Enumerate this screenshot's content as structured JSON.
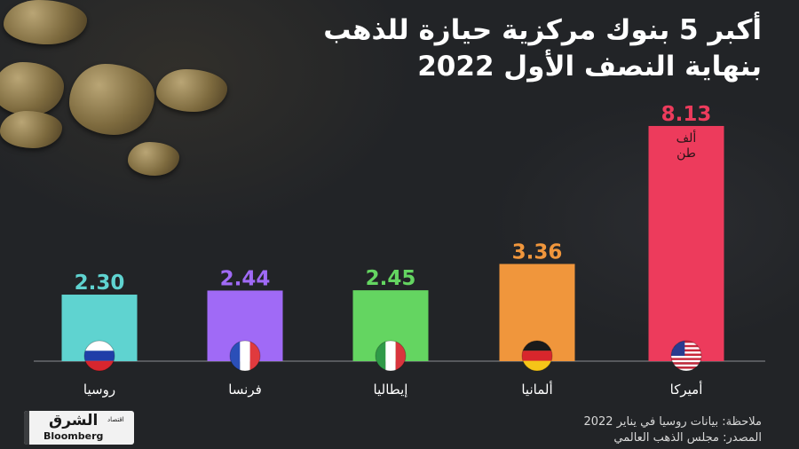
{
  "title": {
    "line1": "أكبر 5 بنوك مركزية حيازة للذهب",
    "line2": "بنهاية النصف الأول 2022"
  },
  "chart_data": {
    "type": "bar",
    "categories": [
      "روسيا",
      "فرنسا",
      "إيطاليا",
      "ألمانيا",
      "أميركا"
    ],
    "values": [
      2.3,
      2.44,
      2.45,
      3.36,
      8.13
    ],
    "value_labels": [
      "2.30",
      "2.44",
      "2.45",
      "3.36",
      "8.13"
    ],
    "unit_label": "ألف طن",
    "colors": [
      "#5fd3d0",
      "#a06af6",
      "#64d561",
      "#f0963c",
      "#ed3b5c"
    ],
    "flags": [
      "russia",
      "france",
      "italy",
      "germany",
      "usa"
    ],
    "legend": "none",
    "grid": false
  },
  "footer": {
    "note": "ملاحظة: بيانات روسيا في يناير 2022",
    "source": "المصدر: مجلس الذهب العالمي"
  },
  "logo": {
    "arabic": "الشرق",
    "small": "اقتصاد",
    "english": "Bloomberg"
  }
}
